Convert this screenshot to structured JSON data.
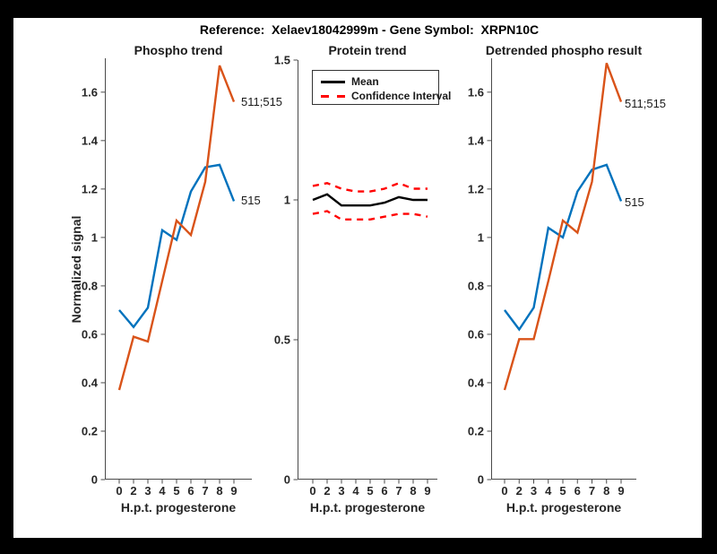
{
  "figure_title": "Reference:  Xelaev18042999m - Gene Symbol:  XRPN10C",
  "chart_data": [
    {
      "type": "line",
      "title": "Phospho trend",
      "xlabel": "H.p.t. progesterone",
      "ylabel": "Normalized signal",
      "x_ticklabels": [
        "0",
        "2",
        "3",
        "4",
        "5",
        "6",
        "7",
        "8",
        "9"
      ],
      "ylim": [
        0,
        1.74
      ],
      "yticks": [
        0,
        0.2,
        0.4,
        0.6,
        0.8,
        1,
        1.2,
        1.4,
        1.6
      ],
      "ytick_labels": [
        "0",
        "0.2",
        "0.4",
        "0.6",
        "0.8",
        "1",
        "1.2",
        "1.4",
        "1.6"
      ],
      "grid": false,
      "legend": null,
      "series": [
        {
          "name": "515",
          "color": "#0072BD",
          "line_style": "solid",
          "end_label": "515",
          "values": [
            0.7,
            0.63,
            0.71,
            1.03,
            0.99,
            1.19,
            1.29,
            1.3,
            1.15
          ]
        },
        {
          "name": "511;515",
          "color": "#D95319",
          "line_style": "solid",
          "end_label": "511;515",
          "values": [
            0.37,
            0.59,
            0.57,
            0.82,
            1.07,
            1.01,
            1.23,
            1.71,
            1.56
          ]
        }
      ]
    },
    {
      "type": "line",
      "title": "Protein trend",
      "xlabel": "H.p.t. progesterone",
      "ylabel": "",
      "x_ticklabels": [
        "0",
        "2",
        "3",
        "4",
        "5",
        "6",
        "7",
        "8",
        "9"
      ],
      "ylim": [
        0,
        1.5
      ],
      "yticks": [
        0,
        0.5,
        1,
        1.5
      ],
      "ytick_labels": [
        "0",
        "0.5",
        "1",
        "1.5"
      ],
      "grid": false,
      "legend": {
        "position": "northwest",
        "entries": [
          "Mean",
          "Confidence Interval"
        ]
      },
      "series": [
        {
          "name": "Mean",
          "color": "#000000",
          "line_style": "solid",
          "values": [
            1.0,
            1.02,
            0.98,
            0.98,
            0.98,
            0.99,
            1.01,
            1.0,
            1.0
          ]
        },
        {
          "name": "Confidence Interval",
          "color": "#FF0000",
          "line_style": "dashed",
          "values": [
            1.05,
            1.06,
            1.04,
            1.03,
            1.03,
            1.04,
            1.06,
            1.04,
            1.04
          ]
        },
        {
          "name": "Confidence Interval",
          "color": "#FF0000",
          "line_style": "dashed",
          "values": [
            0.95,
            0.96,
            0.93,
            0.93,
            0.93,
            0.94,
            0.95,
            0.95,
            0.94
          ]
        }
      ]
    },
    {
      "type": "line",
      "title": "Detrended phospho result",
      "xlabel": "H.p.t. progesterone",
      "ylabel": "",
      "x_ticklabels": [
        "0",
        "2",
        "3",
        "4",
        "5",
        "6",
        "7",
        "8",
        "9"
      ],
      "ylim": [
        0,
        1.74
      ],
      "yticks": [
        0,
        0.2,
        0.4,
        0.6,
        0.8,
        1,
        1.2,
        1.4,
        1.6
      ],
      "ytick_labels": [
        "0",
        "0.2",
        "0.4",
        "0.6",
        "0.8",
        "1",
        "1.2",
        "1.4",
        "1.6"
      ],
      "grid": false,
      "legend": null,
      "series": [
        {
          "name": "515",
          "color": "#0072BD",
          "line_style": "solid",
          "end_label": "515",
          "values": [
            0.7,
            0.62,
            0.71,
            1.04,
            1.0,
            1.19,
            1.28,
            1.3,
            1.15
          ]
        },
        {
          "name": "511;515",
          "color": "#D95319",
          "line_style": "solid",
          "end_label": "511;515",
          "values": [
            0.37,
            0.58,
            0.58,
            0.82,
            1.07,
            1.02,
            1.23,
            1.72,
            1.56
          ]
        }
      ]
    }
  ],
  "style": {
    "blue": "#0072BD",
    "orange": "#D95319",
    "red": "#FF0000",
    "black": "#000000",
    "axis_color": "#4a4a4a",
    "tick_label_color": "#262626"
  }
}
